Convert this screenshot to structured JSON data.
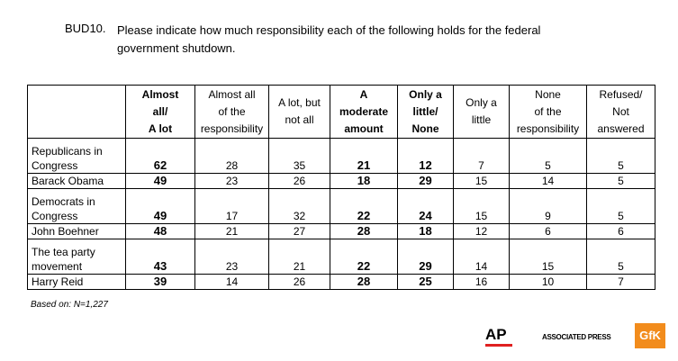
{
  "question": {
    "id": "BUD10.",
    "text": "Please indicate how much responsibility each of the following holds for the federal government shutdown."
  },
  "table": {
    "columns": [
      {
        "lines": [
          "Almost",
          "all/",
          "A lot"
        ],
        "bold": true
      },
      {
        "lines": [
          "Almost all",
          "of the",
          "responsibility"
        ],
        "bold": false
      },
      {
        "lines": [
          "A lot, but",
          "not all"
        ],
        "bold": false
      },
      {
        "lines": [
          "A",
          "moderate",
          "amount"
        ],
        "bold": true
      },
      {
        "lines": [
          "Only a",
          "little/",
          "None"
        ],
        "bold": true
      },
      {
        "lines": [
          "Only a",
          "little"
        ],
        "bold": false
      },
      {
        "lines": [
          "None",
          "of the",
          "responsibility"
        ],
        "bold": false
      },
      {
        "lines": [
          "Refused/",
          "Not",
          "answered"
        ],
        "bold": false
      }
    ],
    "rows": [
      {
        "label": "Republicans in Congress",
        "values": [
          "62",
          "28",
          "35",
          "21",
          "12",
          "7",
          "5",
          "5"
        ]
      },
      {
        "label": "Barack Obama",
        "values": [
          "49",
          "23",
          "26",
          "18",
          "29",
          "15",
          "14",
          "5"
        ]
      },
      {
        "label": "Democrats in Congress",
        "values": [
          "49",
          "17",
          "32",
          "22",
          "24",
          "15",
          "9",
          "5"
        ]
      },
      {
        "label": "John Boehner",
        "values": [
          "48",
          "21",
          "27",
          "28",
          "18",
          "12",
          "6",
          "6"
        ]
      },
      {
        "label": "The tea party movement",
        "values": [
          "43",
          "23",
          "21",
          "22",
          "29",
          "14",
          "15",
          "5"
        ]
      },
      {
        "label": "Harry Reid",
        "values": [
          "39",
          "14",
          "26",
          "28",
          "25",
          "16",
          "10",
          "7"
        ]
      }
    ]
  },
  "footnote": "Based on: N=1,227",
  "logos": {
    "ap": "AP",
    "associated_press": "ASSOCIATED PRESS",
    "gfk": "GfK",
    "ap_accent_color": "#e02020",
    "gfk_color": "#f28c1c"
  }
}
